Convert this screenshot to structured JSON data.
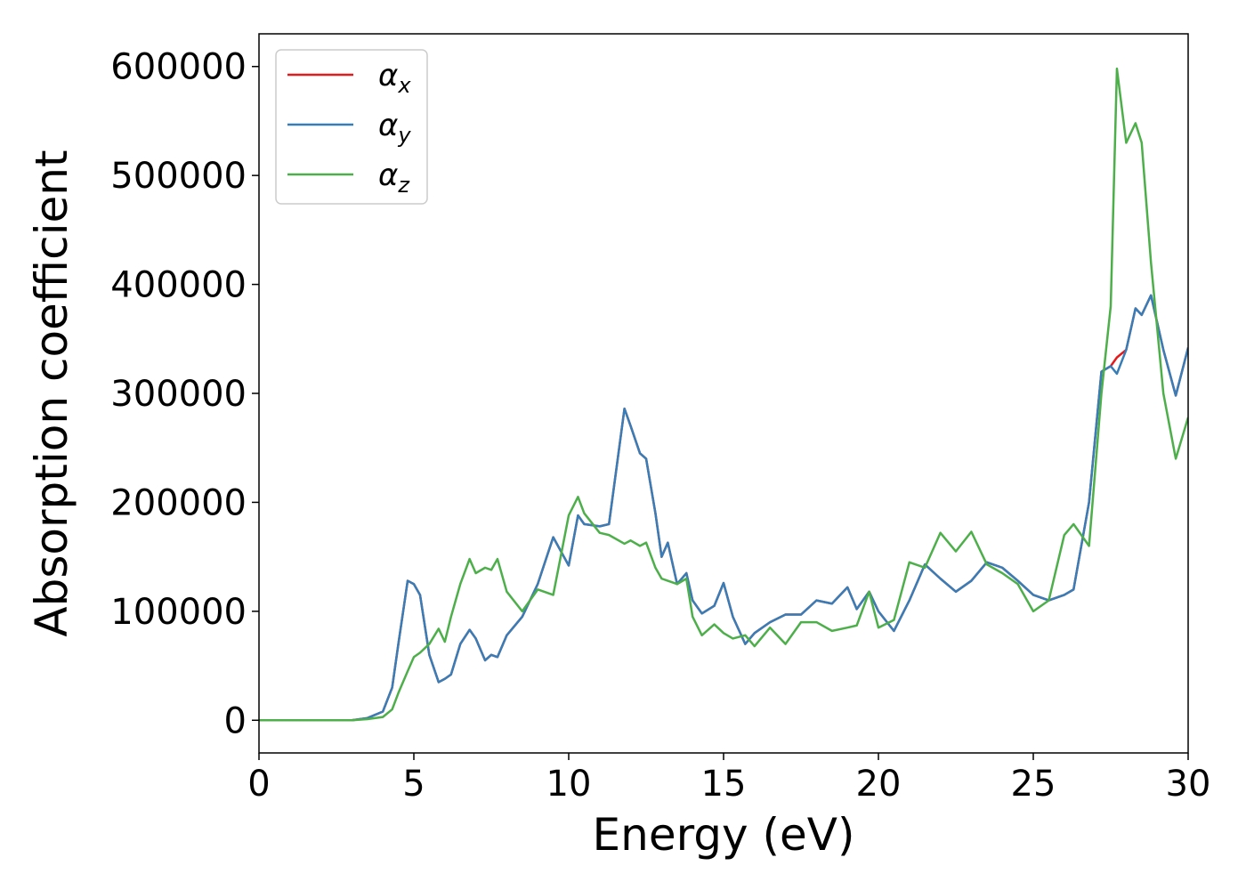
{
  "chart_data": {
    "type": "line",
    "x_label": "Energy (eV)",
    "y_label": "Absorption coefficient",
    "x": [
      0,
      0.5,
      1,
      1.5,
      2,
      2.5,
      3,
      3.5,
      4,
      4.3,
      4.5,
      4.8,
      5,
      5.2,
      5.5,
      5.8,
      6,
      6.2,
      6.5,
      6.8,
      7,
      7.3,
      7.5,
      7.7,
      8,
      8.5,
      9,
      9.5,
      10,
      10.3,
      10.5,
      11,
      11.3,
      11.8,
      12,
      12.3,
      12.5,
      12.8,
      13,
      13.2,
      13.5,
      13.8,
      14,
      14.3,
      14.7,
      15,
      15.3,
      15.7,
      16,
      16.5,
      17,
      17.5,
      18,
      18.5,
      19,
      19.3,
      19.7,
      20,
      20.5,
      21,
      21.5,
      22,
      22.5,
      23,
      23.5,
      24,
      24.5,
      25,
      25.5,
      26,
      26.3,
      26.8,
      27.2,
      27.5,
      27.7,
      28,
      28.3,
      28.5,
      28.8,
      29.2,
      29.6,
      30
    ],
    "series": [
      {
        "name": "αx",
        "color": "#e41a1c",
        "values": [
          0,
          0,
          0,
          0,
          0,
          0,
          0,
          2000,
          8000,
          30000,
          70000,
          128000,
          125000,
          115000,
          60000,
          35000,
          38000,
          42000,
          70000,
          83000,
          75000,
          55000,
          60000,
          58000,
          78000,
          95000,
          125000,
          168000,
          142000,
          188000,
          180000,
          178000,
          180000,
          286000,
          270000,
          245000,
          240000,
          190000,
          150000,
          163000,
          125000,
          135000,
          110000,
          98000,
          105000,
          126000,
          95000,
          70000,
          80000,
          90000,
          97000,
          97000,
          110000,
          107000,
          122000,
          102000,
          118000,
          100000,
          82000,
          110000,
          143000,
          130000,
          118000,
          128000,
          145000,
          140000,
          128000,
          115000,
          110000,
          115000,
          120000,
          200000,
          320000,
          325000,
          333000,
          340000,
          378000,
          372000,
          390000,
          340000,
          298000,
          342000
        ]
      },
      {
        "name": "αy",
        "color": "#377eb8",
        "values": [
          0,
          0,
          0,
          0,
          0,
          0,
          0,
          2000,
          8000,
          30000,
          70000,
          128000,
          125000,
          115000,
          60000,
          35000,
          38000,
          42000,
          70000,
          83000,
          75000,
          55000,
          60000,
          58000,
          78000,
          95000,
          125000,
          168000,
          142000,
          188000,
          180000,
          178000,
          180000,
          286000,
          270000,
          245000,
          240000,
          190000,
          150000,
          163000,
          125000,
          135000,
          110000,
          98000,
          105000,
          126000,
          95000,
          70000,
          80000,
          90000,
          97000,
          97000,
          110000,
          107000,
          122000,
          102000,
          118000,
          100000,
          82000,
          110000,
          143000,
          130000,
          118000,
          128000,
          145000,
          140000,
          128000,
          115000,
          110000,
          115000,
          120000,
          200000,
          320000,
          325000,
          318000,
          340000,
          378000,
          372000,
          390000,
          340000,
          298000,
          342000
        ]
      },
      {
        "name": "αz",
        "color": "#4daf4a",
        "values": [
          0,
          0,
          0,
          0,
          0,
          0,
          0,
          1000,
          3000,
          10000,
          25000,
          45000,
          58000,
          62000,
          70000,
          84000,
          72000,
          95000,
          125000,
          148000,
          135000,
          140000,
          138000,
          148000,
          118000,
          100000,
          120000,
          115000,
          188000,
          205000,
          190000,
          172000,
          170000,
          162000,
          165000,
          160000,
          163000,
          140000,
          130000,
          128000,
          125000,
          130000,
          95000,
          78000,
          88000,
          80000,
          75000,
          78000,
          68000,
          85000,
          70000,
          90000,
          90000,
          82000,
          85000,
          87000,
          118000,
          85000,
          92000,
          145000,
          140000,
          172000,
          155000,
          173000,
          143000,
          135000,
          125000,
          100000,
          110000,
          170000,
          180000,
          160000,
          300000,
          380000,
          598000,
          530000,
          548000,
          530000,
          420000,
          300000,
          240000,
          278000
        ]
      }
    ],
    "xlim": [
      0,
      30
    ],
    "xticks": [
      0,
      5,
      10,
      15,
      20,
      25,
      30
    ],
    "ylim": [
      -30000,
      630000
    ],
    "yticks": [
      0,
      100000,
      200000,
      300000,
      400000,
      500000,
      600000
    ],
    "legend": "upper left",
    "grid": false
  }
}
